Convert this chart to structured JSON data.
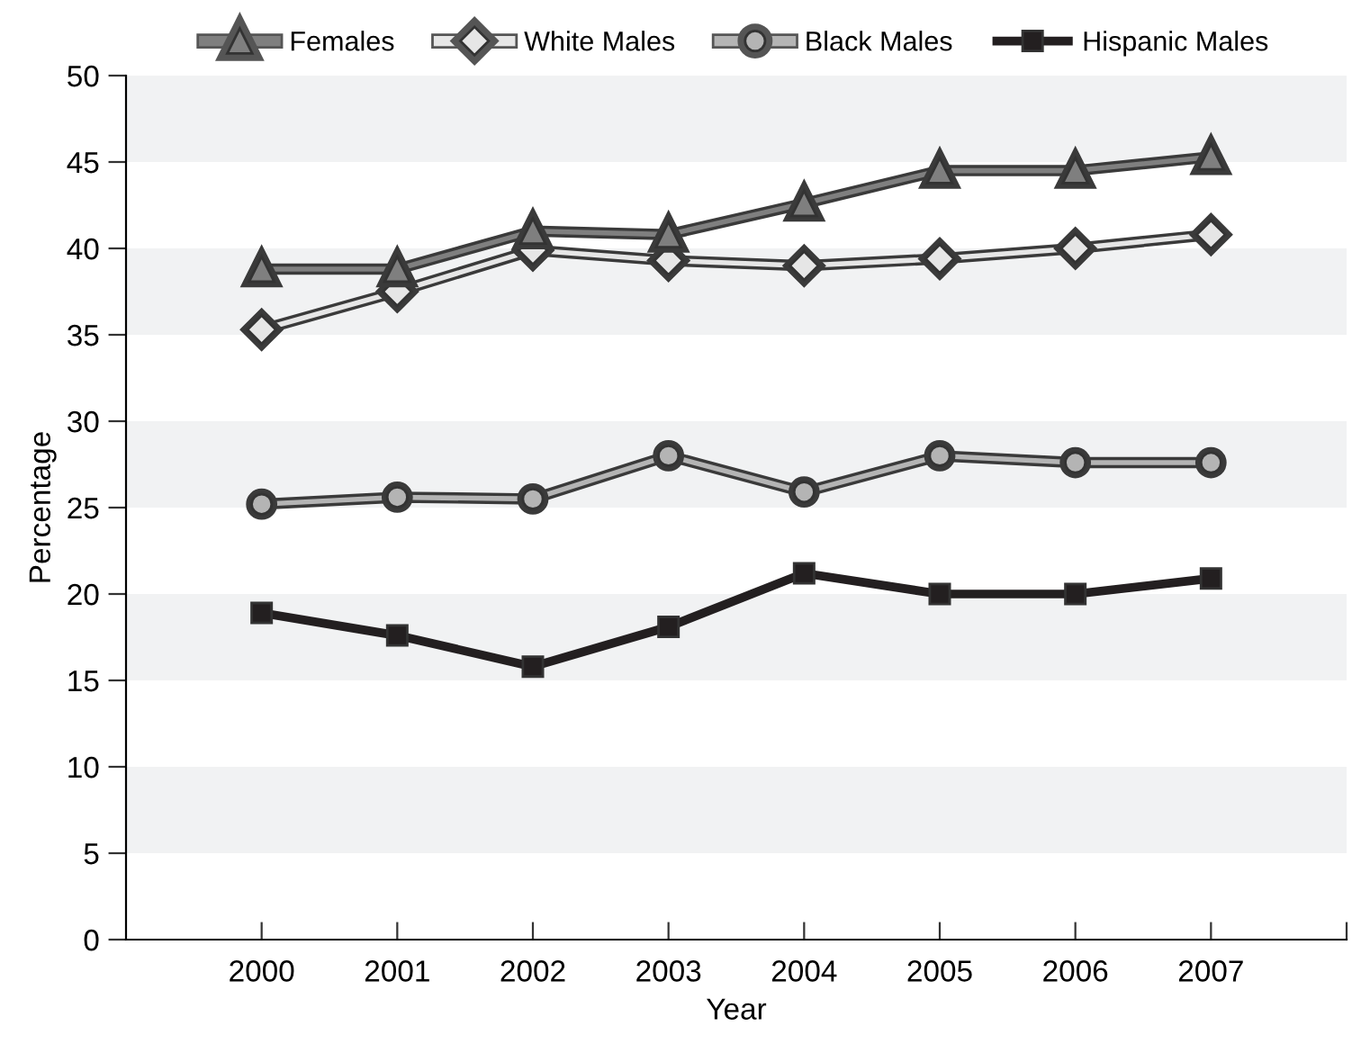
{
  "chart_data": {
    "type": "line",
    "xlabel": "Year",
    "ylabel": "Percentage",
    "x": [
      2000,
      2001,
      2002,
      2003,
      2004,
      2005,
      2006,
      2007
    ],
    "xlim": [
      1999,
      2008
    ],
    "xticks": [
      2000,
      2001,
      2002,
      2003,
      2004,
      2005,
      2006,
      2007,
      {
        "value": 2008,
        "label": null
      }
    ],
    "ylim": [
      0,
      50
    ],
    "yticks": [
      0,
      5,
      10,
      15,
      20,
      25,
      30,
      35,
      40,
      45,
      50
    ],
    "grid": false,
    "legend": "top",
    "bands": [
      {
        "axis": "y",
        "from": 5,
        "to": 10,
        "color": "#f1f2f3"
      },
      {
        "axis": "y",
        "from": 15,
        "to": 20,
        "color": "#f1f2f3"
      },
      {
        "axis": "y",
        "from": 25,
        "to": 30,
        "color": "#f1f2f3"
      },
      {
        "axis": "y",
        "from": 35,
        "to": 40,
        "color": "#f1f2f3"
      },
      {
        "axis": "y",
        "from": 45,
        "to": 50,
        "color": "#f1f2f3"
      }
    ],
    "series": [
      {
        "name": "Females",
        "color": "#7f7f7f",
        "marker": "triangle",
        "values": [
          38.8,
          38.8,
          41.0,
          40.8,
          42.6,
          44.5,
          44.5,
          45.3
        ]
      },
      {
        "name": "White Males",
        "color": "#e6e6e6",
        "marker": "diamond",
        "values": [
          35.3,
          37.5,
          39.9,
          39.3,
          39.0,
          39.4,
          40.0,
          40.8
        ]
      },
      {
        "name": "Black Males",
        "color": "#b4b4b4",
        "marker": "circle",
        "values": [
          25.2,
          25.6,
          25.5,
          28.0,
          25.9,
          28.0,
          27.6,
          27.6
        ]
      },
      {
        "name": "Hispanic Males",
        "color": "#231f20",
        "marker": "square",
        "values": [
          18.9,
          17.6,
          15.8,
          18.1,
          21.2,
          20.0,
          20.0,
          20.9
        ]
      }
    ]
  }
}
